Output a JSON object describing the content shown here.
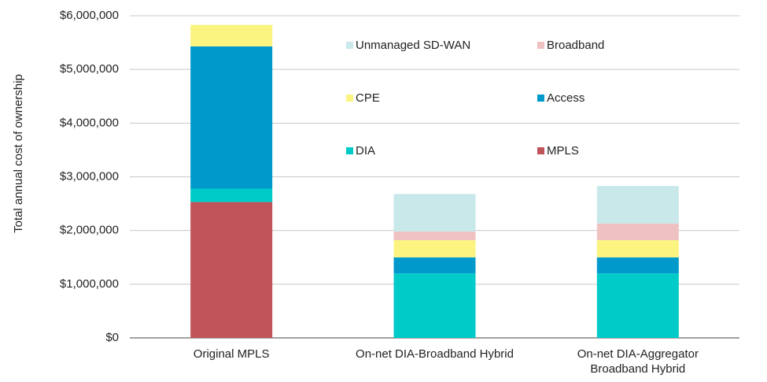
{
  "chart_data": {
    "type": "stacked-bar",
    "y_label": "Total annual cost of ownership",
    "categories": [
      "Original MPLS",
      "On-net DIA-Broadband Hybrid",
      "On-net DIA-Aggregator Broadband Hybrid"
    ],
    "series": [
      {
        "name": "MPLS",
        "color": "#c0545a",
        "values": [
          2530000,
          0,
          0
        ]
      },
      {
        "name": "DIA",
        "color": "#00cbc8",
        "values": [
          250000,
          1200000,
          1200000
        ]
      },
      {
        "name": "Access",
        "color": "#0099cc",
        "values": [
          2650000,
          300000,
          300000
        ]
      },
      {
        "name": "CPE",
        "color": "#fbf480",
        "values": [
          400000,
          320000,
          320000
        ]
      },
      {
        "name": "Broadband",
        "color": "#efc2c2",
        "values": [
          0,
          160000,
          310000
        ]
      },
      {
        "name": "Unmanaged SD-WAN",
        "color": "#c9e8ea",
        "values": [
          0,
          700000,
          700000
        ]
      }
    ],
    "ylim": [
      0,
      6000000
    ],
    "yticks": [
      {
        "value": 0,
        "label": "$0"
      },
      {
        "value": 1000000,
        "label": "$1,000,000"
      },
      {
        "value": 2000000,
        "label": "$2,000,000"
      },
      {
        "value": 3000000,
        "label": "$3,000,000"
      },
      {
        "value": 4000000,
        "label": "$4,000,000"
      },
      {
        "value": 5000000,
        "label": "$5,000,000"
      },
      {
        "value": 6000000,
        "label": "$6,000,000"
      }
    ],
    "grid": true
  }
}
